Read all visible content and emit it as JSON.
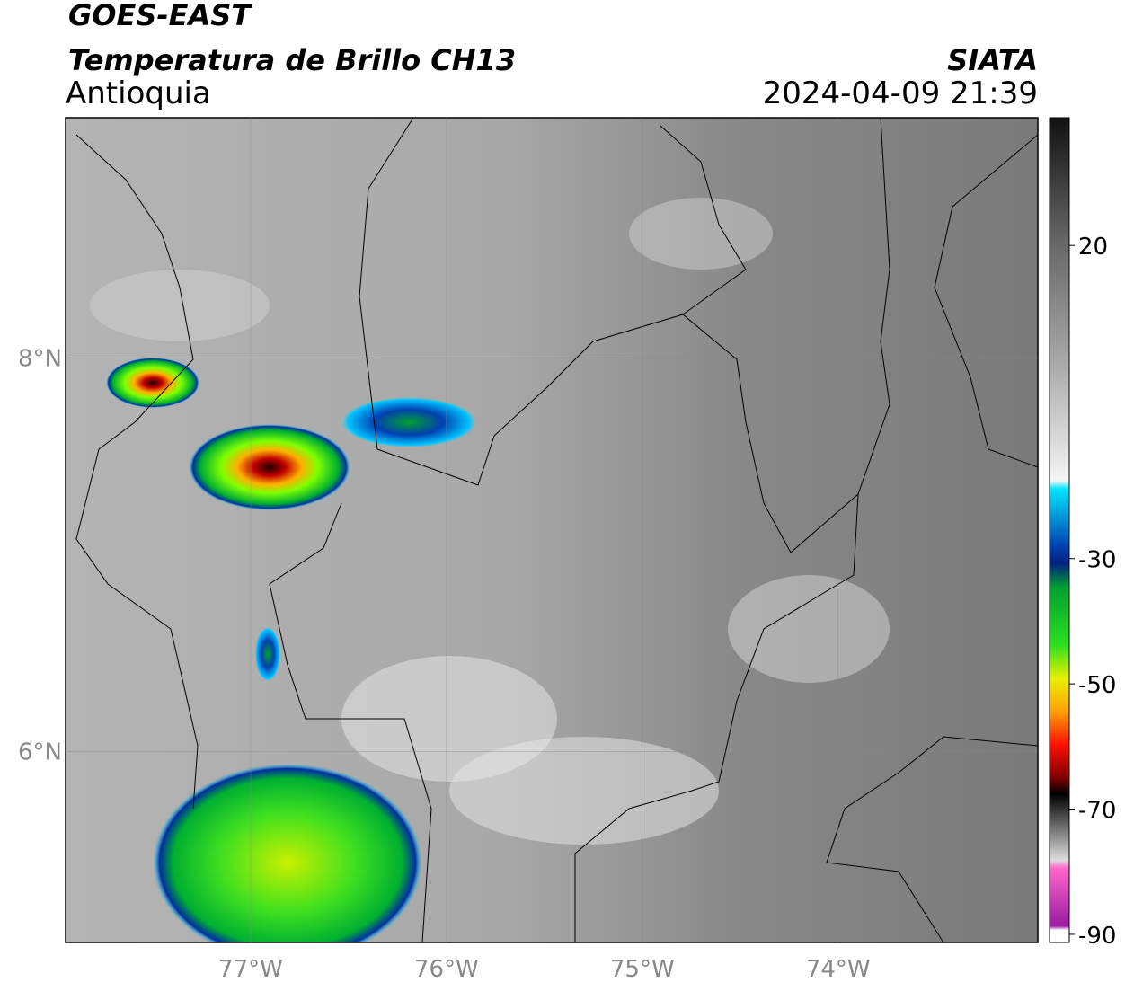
{
  "header": {
    "title": "GOES-EAST",
    "subtitle": "Temperatura de Brillo CH13",
    "region": "Antioquia",
    "source": "SIATA",
    "timestamp": "2024-04-09 21:39"
  },
  "map": {
    "lonlim": [
      -77.945,
      -72.98
    ],
    "latlim": [
      5.03,
      9.22
    ],
    "lon_ticks": [
      {
        "value": -77,
        "label": "77°W"
      },
      {
        "value": -76,
        "label": "76°W"
      },
      {
        "value": -75,
        "label": "75°W"
      },
      {
        "value": -74,
        "label": "74°W"
      }
    ],
    "lat_ticks": [
      {
        "value": 8,
        "label": "8°N"
      },
      {
        "value": 6,
        "label": "6°N"
      }
    ],
    "grid": true
  },
  "colorbar": {
    "lim": [
      -91.3,
      40.4
    ],
    "ticks": [
      20,
      -30,
      -50,
      -70,
      -90
    ]
  }
}
